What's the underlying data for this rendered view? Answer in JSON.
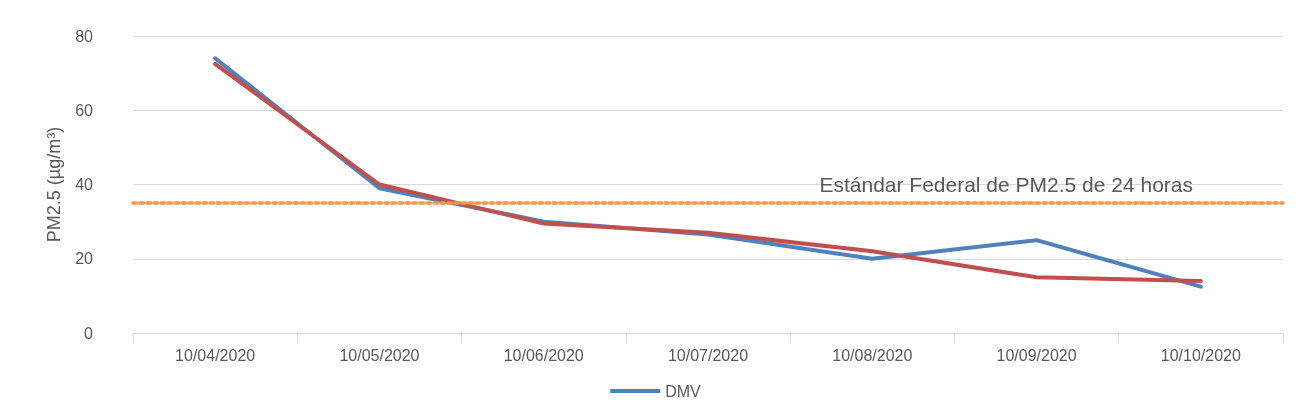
{
  "chart_data": {
    "type": "line",
    "ylabel": "PM2.5 (µg/m³)",
    "categories": [
      "10/04/2020",
      "10/05/2020",
      "10/06/2020",
      "10/07/2020",
      "10/08/2020",
      "10/09/2020",
      "10/10/2020"
    ],
    "series": [
      {
        "name": "DMV",
        "color": "#4f81bd",
        "values": [
          74,
          39,
          30,
          26.5,
          20,
          25,
          12.5
        ]
      },
      {
        "color": "#c0504d",
        "values": [
          72.5,
          40,
          29.5,
          27,
          22,
          15,
          14
        ]
      }
    ],
    "ylim": [
      0,
      80
    ],
    "yticks": [
      0,
      20,
      40,
      60,
      80
    ],
    "grid": "y",
    "legend": "bottom",
    "marker": "none",
    "line_style": "solid",
    "ref_lines": [
      {
        "axis": "y",
        "value": 35,
        "label": "Estándar Federal de PM2.5 de 24 horas",
        "color": "#f79646",
        "line_style": "dotted"
      }
    ]
  }
}
